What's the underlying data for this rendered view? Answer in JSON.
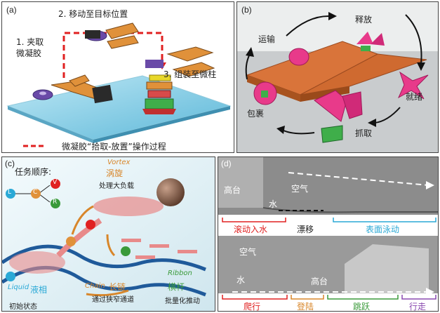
{
  "panel_a": {
    "label": "(a)",
    "step1": [
      "1. 夹取",
      "微凝胶"
    ],
    "step2": "2. 移动至目标位置",
    "step3": "3. 组装至微柱",
    "legend": "微凝胶“拾取-放置”操作过程"
  },
  "panel_b": {
    "label": "(b)",
    "release": "释放",
    "transport": "运输",
    "ready": "就绪",
    "wrap": "包裹",
    "grab": "抓取"
  },
  "panel_c": {
    "label": "(c)",
    "task_order": "任务顺序:",
    "nodes": [
      "L",
      "C",
      "V",
      "R"
    ],
    "vortex_en": "Vortex",
    "vortex_cn": "涡旋",
    "vortex_desc": "处理大负载",
    "chain_en": "Chain",
    "chain_cn": "长链",
    "chain_desc": "通过狭窄通道",
    "liquid_en": "Liquid",
    "liquid_cn": "液相",
    "liquid_desc": "初始状态",
    "ribbon_en": "Ribbon",
    "ribbon_cn": "横杆",
    "ribbon_desc": "批量化推动"
  },
  "panel_d": {
    "label": "(d)",
    "top": {
      "platform": "高台",
      "air": "空气",
      "water": "水",
      "roll": "滚动入水",
      "drift": "漂移",
      "surface": "表面泳动"
    },
    "bottom": {
      "air": "空气",
      "water": "水",
      "platform": "高台",
      "crawl": "爬行",
      "land": "登陆",
      "jump": "跳跃",
      "walk": "行走"
    }
  },
  "colors": {
    "red": "#e02020",
    "cyan": "#2aa9d6",
    "green": "#3a9a3a",
    "purple": "#8a4ab0",
    "vortex_orange": "#d8862a"
  }
}
